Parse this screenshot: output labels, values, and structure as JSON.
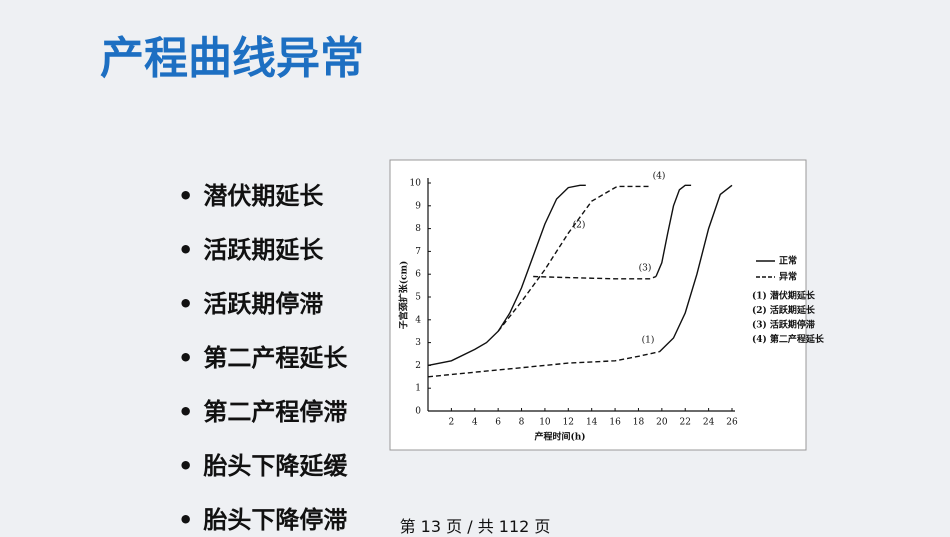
{
  "title": "产程曲线异常",
  "bullets": [
    "潜伏期延长",
    "活跃期延长",
    "活跃期停滞",
    "第二产程延长",
    "第二产程停滞",
    "胎头下降延缓",
    "胎头下降停滞"
  ],
  "footer": "第 13 页 / 共 112 页",
  "chart_data": {
    "type": "line",
    "x_label": "产程时间(h)",
    "y_label": "子宫颈扩张(cm)",
    "xlim": [
      0,
      26
    ],
    "ylim": [
      0,
      10
    ],
    "xticks": [
      2,
      4,
      6,
      8,
      10,
      12,
      14,
      16,
      18,
      20,
      22,
      24,
      26
    ],
    "yticks": [
      0,
      1,
      2,
      3,
      4,
      5,
      6,
      7,
      8,
      9,
      10
    ],
    "series": [
      {
        "name": "正常",
        "color": "#111111",
        "dash": false,
        "x": [
          0,
          2,
          4,
          5,
          6,
          7,
          8,
          9,
          10,
          11,
          12,
          13,
          13.5,
          null,
          19.5,
          20,
          20.5,
          21,
          21.5,
          22,
          22.5,
          null,
          19.8,
          21,
          22,
          23,
          24,
          25,
          26
        ],
        "values": [
          2,
          2.2,
          2.7,
          3.0,
          3.5,
          4.3,
          5.4,
          6.8,
          8.2,
          9.3,
          9.8,
          9.9,
          9.9,
          null,
          5.9,
          6.5,
          7.8,
          9.0,
          9.7,
          9.9,
          9.9,
          null,
          2.6,
          3.2,
          4.3,
          6.0,
          8.0,
          9.5,
          9.9
        ]
      },
      {
        "name": "异常",
        "color": "#111111",
        "dash": true,
        "x": [
          6,
          8,
          10,
          12,
          14,
          16,
          16.2,
          19,
          null,
          9,
          12,
          16,
          19,
          19.5,
          null,
          0,
          4,
          8,
          12,
          16,
          18,
          19.8
        ],
        "values": [
          3.5,
          4.8,
          6.2,
          7.8,
          9.2,
          9.8,
          9.85,
          9.85,
          null,
          5.9,
          5.85,
          5.8,
          5.8,
          5.9,
          null,
          1.5,
          1.7,
          1.9,
          2.1,
          2.2,
          2.4,
          2.6
        ]
      }
    ],
    "annotations": [
      "(4)",
      "(2)",
      "(3)",
      "(1)"
    ],
    "legend_notes": [
      "(1) 潜伏期延长",
      "(2) 活跃期延长",
      "(3) 活跃期停滞",
      "(4) 第二产程延长"
    ]
  }
}
